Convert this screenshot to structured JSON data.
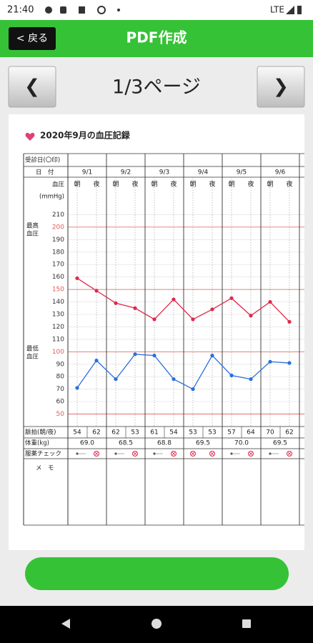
{
  "status_bar": {
    "time": "21:40",
    "network": "LTE"
  },
  "header": {
    "back": "< 戻る",
    "title": "PDF作成"
  },
  "pager": {
    "prev": "❮",
    "page": "1/3ページ",
    "next": "❯"
  },
  "document": {
    "title": "2020年9月の血圧記録",
    "rows": {
      "visit": "受診日(〇印)",
      "date": "日　付",
      "bp": "血圧",
      "unit": "(mmHg)",
      "morning": "朝",
      "night": "夜",
      "systolic": [
        "最高",
        "血圧"
      ],
      "diastolic": [
        "最低",
        "血圧"
      ],
      "pulse": "脈拍(朝/夜)",
      "weight": "体重(kg)",
      "medication": "服薬チェック",
      "memo": "メ　モ"
    },
    "pulse": [
      [
        54,
        62
      ],
      [
        62,
        53
      ],
      [
        61,
        54
      ],
      [
        53,
        53
      ],
      [
        57,
        64
      ],
      [
        70,
        62
      ]
    ],
    "weight": [
      "69.0",
      "68.5",
      "68.8",
      "69.5",
      "70.0",
      "69.5"
    ],
    "medication": [
      [
        false,
        true
      ],
      [
        false,
        true
      ],
      [
        false,
        true
      ],
      [
        true,
        true
      ],
      [
        false,
        true
      ],
      [
        false,
        true
      ]
    ]
  },
  "chart_data": {
    "type": "line",
    "categories": [
      "9/1",
      "9/2",
      "9/3",
      "9/4",
      "9/5",
      "9/6"
    ],
    "series": [
      {
        "name": "最高血圧",
        "color": "#e0284a",
        "values": [
          [
            159,
            149
          ],
          [
            139,
            135
          ],
          [
            126,
            142
          ],
          [
            126,
            134
          ],
          [
            143,
            129
          ],
          [
            140,
            124
          ]
        ]
      },
      {
        "name": "最低血圧",
        "color": "#2a6fdb",
        "values": [
          [
            71,
            93
          ],
          [
            78,
            98
          ],
          [
            97,
            78
          ],
          [
            70,
            97
          ],
          [
            81,
            78
          ],
          [
            92,
            91
          ]
        ]
      }
    ],
    "ylim": [
      40,
      216
    ],
    "yticks": [
      50,
      60,
      70,
      80,
      90,
      100,
      110,
      120,
      130,
      140,
      150,
      160,
      170,
      180,
      190,
      200,
      210
    ],
    "grid": true,
    "highlight_step": 50,
    "highlight_color": "#e05a5a"
  }
}
